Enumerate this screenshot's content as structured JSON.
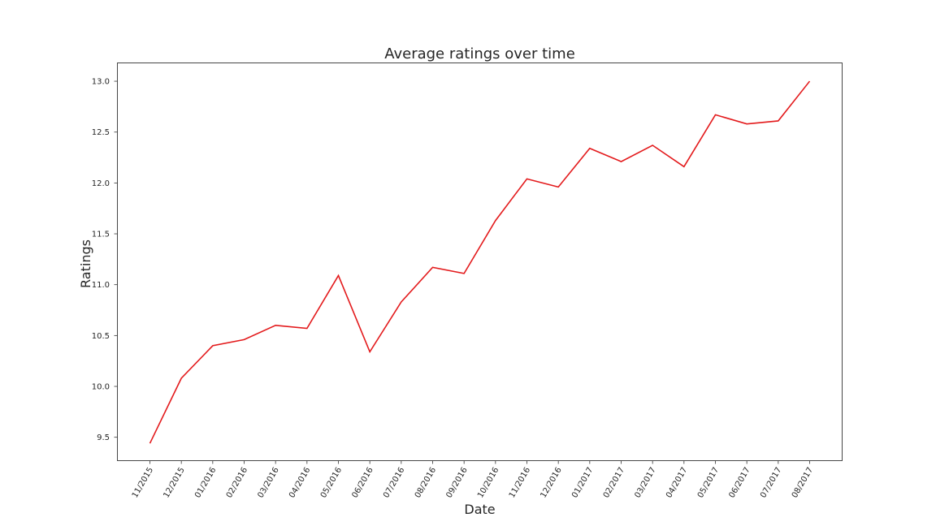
{
  "chart_data": {
    "type": "line",
    "title": "Average ratings over time",
    "xlabel": "Date",
    "ylabel": "Ratings",
    "categories": [
      "11/2015",
      "12/2015",
      "01/2016",
      "02/2016",
      "03/2016",
      "04/2016",
      "05/2016",
      "06/2016",
      "07/2016",
      "08/2016",
      "09/2016",
      "10/2016",
      "11/2016",
      "12/2016",
      "01/2017",
      "02/2017",
      "03/2017",
      "04/2017",
      "05/2017",
      "06/2017",
      "07/2017",
      "08/2017"
    ],
    "series": [
      {
        "color": "#e31a1c",
        "values": [
          9.44,
          10.08,
          10.4,
          10.46,
          10.6,
          10.57,
          11.09,
          10.34,
          10.83,
          11.17,
          11.11,
          11.63,
          12.04,
          11.96,
          12.34,
          12.21,
          12.37,
          12.16,
          12.67,
          12.58,
          12.61,
          13.0
        ]
      }
    ],
    "yticks": [
      "9.5",
      "10.0",
      "10.5",
      "11.0",
      "11.5",
      "12.0",
      "12.5",
      "13.0"
    ],
    "ylim": [
      9.27,
      13.18
    ],
    "grid": false,
    "x_tick_rotation": "60deg"
  }
}
